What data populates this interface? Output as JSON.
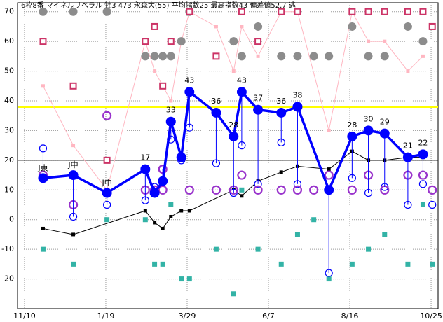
{
  "chart_data": {
    "type": "line",
    "title": "6枠8番 マイネルリベラル 牡3 473 永森大(55) 平均指数25 最高指数43 偏差値52.7 逃",
    "xlim": [
      -6,
      356
    ],
    "xticks": [
      {
        "value": 0,
        "label": "11/10"
      },
      {
        "value": 70,
        "label": "1/19"
      },
      {
        "value": 140,
        "label": "3/29"
      },
      {
        "value": 210,
        "label": "6/7"
      },
      {
        "value": 280,
        "label": "8/16"
      },
      {
        "value": 350,
        "label": "10/25"
      }
    ],
    "ylim": [
      -30,
      73
    ],
    "yticks": [
      -20,
      -10,
      0,
      10,
      20,
      30,
      40,
      50,
      60,
      70
    ],
    "grid": true,
    "reference_lines": [
      {
        "value": 38,
        "color": "#ffff00",
        "width": 3
      },
      {
        "value": 20,
        "color": "#000000",
        "width": 1
      }
    ],
    "series": [
      {
        "marker": "small-square",
        "line": true,
        "color": "#ffb6c1",
        "x": [
          16,
          42,
          71,
          104,
          112,
          119,
          126,
          135,
          142,
          165,
          180,
          187,
          201,
          221,
          235,
          262,
          282,
          296,
          310,
          330,
          343
        ],
        "values": [
          45,
          25,
          10,
          60,
          50,
          45,
          40,
          60,
          70,
          65,
          50,
          65,
          55,
          70,
          70,
          30,
          70,
          60,
          60,
          50,
          55
        ]
      },
      {
        "marker": "dot",
        "line": false,
        "color": "#8c8c8c",
        "x": [
          16,
          42,
          71,
          104,
          112,
          119,
          126,
          135,
          142,
          180,
          187,
          201,
          221,
          235,
          249,
          262,
          282,
          296,
          310,
          330,
          343
        ],
        "values": [
          70,
          70,
          70,
          55,
          55,
          55,
          55,
          60,
          70,
          60,
          55,
          65,
          55,
          55,
          55,
          55,
          65,
          55,
          55,
          65,
          60
        ]
      },
      {
        "marker": "hollow-square",
        "line": false,
        "color": "#cc3366",
        "x": [
          16,
          42,
          71,
          104,
          112,
          119,
          126,
          142,
          165,
          187,
          201,
          221,
          235,
          282,
          296,
          310,
          330,
          343,
          351
        ],
        "values": [
          60,
          45,
          20,
          60,
          65,
          45,
          60,
          70,
          55,
          70,
          60,
          70,
          70,
          70,
          70,
          70,
          70,
          70,
          65
        ]
      },
      {
        "marker": "square",
        "line": false,
        "color": "#33b3a6",
        "x": [
          16,
          42,
          71,
          104,
          112,
          119,
          126,
          135,
          142,
          165,
          180,
          187,
          201,
          221,
          235,
          249,
          262,
          282,
          296,
          310,
          330,
          343,
          351
        ],
        "values": [
          -10,
          -15,
          0,
          0,
          -15,
          -15,
          5,
          -20,
          -20,
          -10,
          -25,
          10,
          -10,
          -15,
          -5,
          0,
          -20,
          -15,
          -10,
          -5,
          -15,
          5,
          -15
        ]
      },
      {
        "marker": "small-square",
        "line": true,
        "color": "#000000",
        "x": [
          16,
          42,
          104,
          112,
          119,
          126,
          135,
          142,
          180,
          187,
          201,
          221,
          235,
          262,
          282,
          296,
          310,
          330,
          343
        ],
        "values": [
          -3,
          -5,
          3,
          -1,
          -3,
          1,
          3,
          3,
          10,
          8,
          13,
          16,
          18,
          17,
          23,
          20,
          20,
          21,
          21
        ]
      },
      {
        "marker": "hollow-circle",
        "line": false,
        "color": "#0000ff",
        "x": [
          16,
          42,
          71,
          104,
          112,
          119,
          126,
          135,
          142,
          165,
          180,
          187,
          201,
          221,
          235,
          262,
          282,
          296,
          310,
          330,
          343,
          351
        ],
        "values": [
          24,
          1,
          5,
          6.5,
          11,
          17,
          27,
          20,
          31,
          19,
          9,
          25,
          12,
          26,
          12,
          -18,
          14,
          9,
          11,
          5,
          12,
          5
        ]
      },
      {
        "marker": "ring",
        "line": false,
        "color": "#9933cc",
        "x": [
          16,
          42,
          71,
          104,
          112,
          119,
          119,
          142,
          165,
          180,
          187,
          201,
          221,
          235,
          249,
          262,
          282,
          296,
          310,
          330,
          343,
          351
        ],
        "values": [
          15,
          5,
          35,
          10,
          10,
          10,
          17,
          10,
          10,
          10,
          15,
          10,
          10,
          10,
          10,
          15,
          10,
          15,
          10,
          15,
          15,
          10
        ]
      },
      {
        "marker": "big-dot",
        "line": true,
        "color": "#0000ff",
        "drop_lines_to": 5,
        "x": [
          16,
          42,
          71,
          104,
          112,
          119,
          126,
          135,
          142,
          165,
          180,
          187,
          201,
          221,
          235,
          262,
          282,
          296,
          310,
          330,
          343
        ],
        "values": [
          14,
          15,
          9,
          17,
          9,
          13,
          33,
          21,
          43,
          36,
          28,
          43,
          37,
          36,
          38,
          10,
          28,
          30,
          29,
          21,
          22
        ],
        "value_labels": [
          null,
          null,
          null,
          "17",
          null,
          null,
          "33",
          null,
          "43",
          "36",
          "28",
          "43",
          "37",
          "36",
          "38",
          null,
          "28",
          "30",
          "29",
          "21",
          "22"
        ]
      }
    ],
    "annotations": [
      {
        "point": 0,
        "text": "J東"
      },
      {
        "point": 1,
        "text": "J中"
      },
      {
        "point": 2,
        "text": "J中"
      }
    ]
  }
}
